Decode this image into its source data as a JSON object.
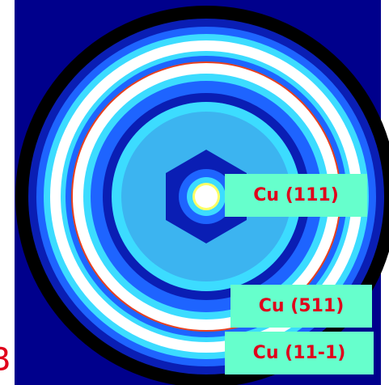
{
  "labels": [
    "Cu (111)",
    "Cu (511)",
    "Cu (11-1)"
  ],
  "panel_letter": "B"
}
